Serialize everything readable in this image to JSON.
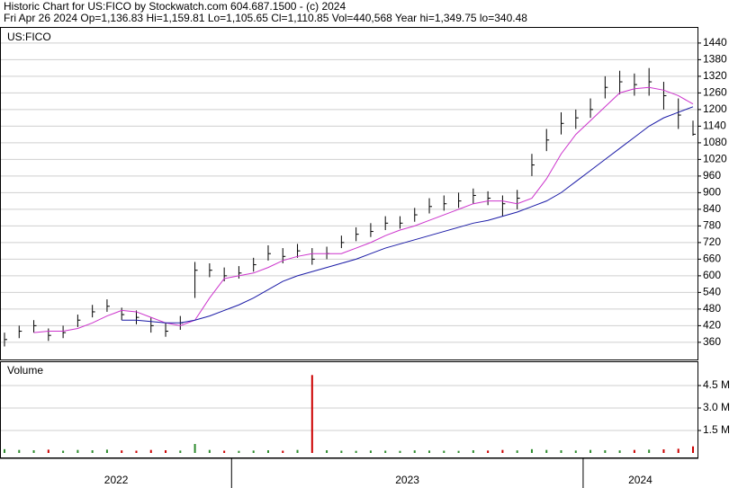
{
  "chart_data": {
    "type": "ohlc",
    "title": "Historic Chart for US:FICO by Stockwatch.com 604.687.1500 - (c) 2024",
    "subtitle": "Fri Apr 26 2024  Op=1,136.83  Hi=1,159.81  Lo=1,105.65  Cl=1,110.85  Vol=440,568  Year hi=1,349.75  lo=340.48",
    "price_label": "US:FICO",
    "volume_label": "Volume",
    "categories": [
      "2022",
      null,
      null,
      null,
      null,
      null,
      null,
      null,
      null,
      null,
      null,
      null,
      null,
      null,
      null,
      null,
      "2023",
      null,
      null,
      null,
      null,
      null,
      null,
      null,
      null,
      null,
      null,
      null,
      null,
      null,
      null,
      null,
      null,
      null,
      null,
      null,
      null,
      null,
      null,
      null,
      "2024",
      null,
      null,
      null,
      null,
      null,
      null,
      null
    ],
    "close": [
      370,
      400,
      420,
      385,
      395,
      440,
      470,
      490,
      460,
      450,
      420,
      400,
      430,
      620,
      620,
      600,
      610,
      640,
      680,
      670,
      690,
      660,
      680,
      720,
      750,
      760,
      790,
      790,
      820,
      850,
      860,
      870,
      890,
      880,
      860,
      880,
      1000,
      1090,
      1150,
      1170,
      1200,
      1280,
      1300,
      1290,
      1300,
      1250,
      1180,
      1110.85
    ],
    "high": [
      395,
      420,
      440,
      410,
      420,
      460,
      495,
      515,
      485,
      475,
      450,
      430,
      455,
      650,
      645,
      630,
      635,
      665,
      710,
      700,
      715,
      700,
      705,
      745,
      775,
      790,
      815,
      815,
      845,
      880,
      890,
      900,
      915,
      905,
      890,
      910,
      1040,
      1130,
      1190,
      1200,
      1240,
      1320,
      1340,
      1330,
      1349.75,
      1300,
      1240,
      1159.81
    ],
    "low": [
      345,
      375,
      395,
      365,
      375,
      415,
      450,
      470,
      440,
      425,
      395,
      380,
      405,
      520,
      595,
      580,
      590,
      615,
      655,
      645,
      665,
      640,
      660,
      700,
      725,
      740,
      765,
      770,
      795,
      825,
      835,
      845,
      860,
      855,
      815,
      840,
      960,
      1050,
      1110,
      1130,
      1170,
      1240,
      1255,
      1250,
      1250,
      1200,
      1130,
      1105.65
    ],
    "series": [
      {
        "color": "#cc33cc",
        "values": [
          null,
          null,
          395,
          400,
          400,
          410,
          430,
          455,
          475,
          470,
          450,
          430,
          420,
          440,
          520,
          590,
          600,
          610,
          630,
          655,
          670,
          680,
          680,
          680,
          700,
          720,
          745,
          765,
          780,
          800,
          820,
          840,
          860,
          870,
          870,
          860,
          880,
          950,
          1040,
          1110,
          1160,
          1210,
          1260,
          1275,
          1280,
          1270,
          1250,
          1220
        ]
      },
      {
        "color": "#1a1aa6",
        "values": [
          null,
          null,
          null,
          null,
          null,
          null,
          null,
          null,
          440,
          440,
          435,
          430,
          430,
          440,
          455,
          475,
          495,
          520,
          550,
          580,
          600,
          615,
          630,
          645,
          660,
          680,
          700,
          715,
          730,
          745,
          760,
          775,
          790,
          800,
          815,
          830,
          850,
          870,
          900,
          940,
          980,
          1020,
          1060,
          1100,
          1140,
          1170,
          1190,
          1210
        ]
      }
    ],
    "volume": {
      "color": "#2e8b2e",
      "down_color": "#cc0000",
      "values": [
        0.25,
        0.2,
        0.18,
        0.22,
        0.15,
        0.2,
        0.18,
        0.22,
        0.17,
        0.15,
        0.2,
        0.18,
        0.16,
        0.6,
        0.2,
        0.15,
        0.14,
        0.16,
        0.18,
        0.15,
        0.2,
        5.2,
        0.18,
        0.15,
        0.14,
        0.16,
        0.15,
        0.14,
        0.17,
        0.16,
        0.15,
        0.14,
        0.18,
        0.16,
        0.2,
        0.17,
        0.25,
        0.2,
        0.18,
        0.16,
        0.2,
        0.18,
        0.17,
        0.2,
        0.22,
        0.24,
        0.28,
        0.44
      ]
    },
    "ylim": [
      298,
      1498
    ],
    "yticks": [
      360,
      420,
      480,
      540,
      600,
      660,
      720,
      780,
      840,
      900,
      960,
      1020,
      1080,
      1140,
      1200,
      1260,
      1320,
      1380,
      1440
    ],
    "y2lim": [
      0,
      6.06
    ],
    "y2ticks": [
      {
        "value": 1.5,
        "label": "1.5 M"
      },
      {
        "value": 3.0,
        "label": "3.0 M"
      },
      {
        "value": 4.5,
        "label": "4.5 M"
      }
    ],
    "grid": true
  }
}
